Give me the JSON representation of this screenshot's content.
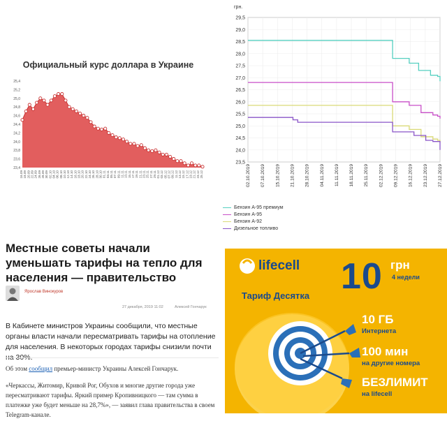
{
  "usd_chart": {
    "title": "Официальный курс доллара в Украине",
    "color": "#e05555",
    "chart_data": {
      "type": "area",
      "ylim": [
        23.4,
        25.4
      ],
      "yticks": [
        "23,4",
        "23,6",
        "23,8",
        "24,0",
        "24,2",
        "24,4",
        "24,6",
        "24,8",
        "25,0",
        "25,2",
        "25,4"
      ],
      "x_labels": [
        "18.09",
        "20.09",
        "22.09",
        "24.09",
        "26.09",
        "28.09",
        "30.09",
        "02.10",
        "04.10",
        "06.10",
        "08.10",
        "10.10",
        "12.10",
        "14.10",
        "16.10",
        "18.10",
        "20.10",
        "22.10",
        "24.10",
        "26.10",
        "28.10",
        "30.10",
        "01.11",
        "03.11",
        "05.11",
        "07.11",
        "09.11",
        "11.11",
        "13.11",
        "15.11",
        "17.11",
        "19.11",
        "21.11",
        "23.11",
        "25.11",
        "27.11",
        "29.11",
        "01.12",
        "03.12",
        "05.12",
        "07.12",
        "09.12",
        "11.12",
        "13.12",
        "15.12",
        "17.12",
        "19.12"
      ],
      "tick_text": [
        "16.09",
        "18.09",
        "20.09",
        "22.09",
        "24.09",
        "26.09",
        "28.09",
        "30.09",
        "02.10",
        "04.10",
        "06.10",
        "08.10",
        "10.10",
        "12.10",
        "14.10",
        "16.10",
        "18.10",
        "20.10",
        "22.10",
        "24.10",
        "26.10",
        "28.10",
        "30.10",
        "01.11",
        "03.11",
        "05.11",
        "07.11",
        "09.11",
        "11.11",
        "13.11",
        "15.11",
        "17.11",
        "19.11",
        "21.11",
        "23.11",
        "25.11",
        "27.11",
        "29.11",
        "01.12",
        "03.12",
        "05.12",
        "07.12",
        "09.12",
        "11.12",
        "13.12",
        "15.12",
        "17.12",
        "19.12",
        "21.12",
        "23.12",
        "25.12"
      ],
      "values": [
        24.5,
        24.7,
        24.85,
        24.75,
        24.9,
        25.0,
        24.95,
        24.85,
        24.95,
        25.05,
        25.1,
        25.1,
        24.95,
        24.8,
        24.75,
        24.7,
        24.65,
        24.6,
        24.55,
        24.45,
        24.35,
        24.3,
        24.28,
        24.3,
        24.2,
        24.15,
        24.1,
        24.08,
        24.05,
        24.0,
        23.95,
        23.95,
        23.9,
        23.92,
        23.85,
        23.8,
        23.78,
        23.8,
        23.75,
        23.7,
        23.7,
        23.65,
        23.6,
        23.55,
        23.55,
        23.5,
        23.45,
        23.5,
        23.45,
        23.45,
        23.42
      ]
    }
  },
  "fuel_chart": {
    "unit": "грн.",
    "chart_data": {
      "type": "line",
      "ylim": [
        23.5,
        29.5
      ],
      "yticks": [
        "23,5",
        "24,0",
        "24,5",
        "25,0",
        "25,5",
        "26,0",
        "26,5",
        "27,0",
        "27,5",
        "28,0",
        "28,5",
        "29,0",
        "29,5"
      ],
      "x_ticks": [
        "02.10.2019",
        "07.10.2019",
        "15.10.2019",
        "21.10.2019",
        "28.10.2019",
        "04.11.2019",
        "11.11.2019",
        "18.11.2019",
        "25.11.2019",
        "02.12.2019",
        "09.12.2019",
        "16.12.2019",
        "23.12.2019",
        "27.12.2019"
      ],
      "series": [
        {
          "name": "Бензин А-95 премиум",
          "color": "#55cfc0",
          "points": [
            [
              0,
              28.55
            ],
            [
              60,
              28.55
            ],
            [
              61,
              27.8
            ],
            [
              67,
              27.8
            ],
            [
              68,
              27.6
            ],
            [
              71,
              27.6
            ],
            [
              72,
              27.3
            ],
            [
              76,
              27.3
            ],
            [
              77,
              27.1
            ],
            [
              80,
              27.05
            ],
            [
              81,
              26.85
            ]
          ]
        },
        {
          "name": "Бензин А-95",
          "color": "#c84fc8",
          "points": [
            [
              0,
              26.8
            ],
            [
              60,
              26.8
            ],
            [
              61,
              26.0
            ],
            [
              67,
              26.0
            ],
            [
              68,
              25.85
            ],
            [
              72,
              25.85
            ],
            [
              73,
              25.55
            ],
            [
              77,
              25.55
            ],
            [
              78,
              25.45
            ],
            [
              80,
              25.4
            ],
            [
              81,
              25.3
            ]
          ]
        },
        {
          "name": "Бензин А-92",
          "color": "#dada77",
          "points": [
            [
              0,
              25.85
            ],
            [
              60,
              25.85
            ],
            [
              61,
              25.0
            ],
            [
              67,
              25.0
            ],
            [
              68,
              24.85
            ],
            [
              72,
              24.85
            ],
            [
              73,
              24.55
            ],
            [
              77,
              24.55
            ],
            [
              78,
              24.45
            ],
            [
              80,
              24.4
            ],
            [
              81,
              24.3
            ]
          ]
        },
        {
          "name": "Дизельное топливо",
          "color": "#8a55c8",
          "points": [
            [
              0,
              25.35
            ],
            [
              18,
              25.35
            ],
            [
              19,
              25.25
            ],
            [
              20,
              25.25
            ],
            [
              21,
              25.15
            ],
            [
              60,
              25.15
            ],
            [
              61,
              24.75
            ],
            [
              69,
              24.75
            ],
            [
              70,
              24.6
            ],
            [
              74,
              24.6
            ],
            [
              75,
              24.4
            ],
            [
              78,
              24.35
            ],
            [
              81,
              24.0
            ]
          ]
        }
      ]
    }
  },
  "news": {
    "title": "Местные советы начали уменьшать тарифы на тепло для населения — правительство",
    "author": "Ярослав Винокуров",
    "date": "27 декабря, 2019 11:02",
    "source_author": "Алексей Гончарук",
    "lead": "В Кабинете министров Украины сообщили, что местные органы власти начали пересматривать тарифы на отопление для населения. В некоторых городах тарифы снизили почти на 30%.",
    "p1_a": "Об этом ",
    "p1_link": "сообщил",
    "p1_b": " премьер-министр Украины Алексей Гончарук.",
    "p2": "«Черкассы, Житомир, Кривой Рог, Обухов и многие другие города уже пересматривают тарифы. Яркий пример Кропивницкого — там сумма в платежке уже будет меньше на 28,7%», — заявил глава правительства в своем Telegram-канале."
  },
  "ad": {
    "brand": "lifecell",
    "tariff": "Тариф Десятка",
    "price": "10",
    "currency": "грн",
    "period": "4 недели",
    "f1_big": "10 ГБ",
    "f1_small": "Интернета",
    "f2_big": "100 мин",
    "f2_small": "на другие номера",
    "f3_big": "БЕЗЛИМИТ",
    "f3_small": "на lifecell",
    "colors": {
      "bg": "#f4b400",
      "brand": "#1a4a8c",
      "text": "#ffffff"
    }
  }
}
